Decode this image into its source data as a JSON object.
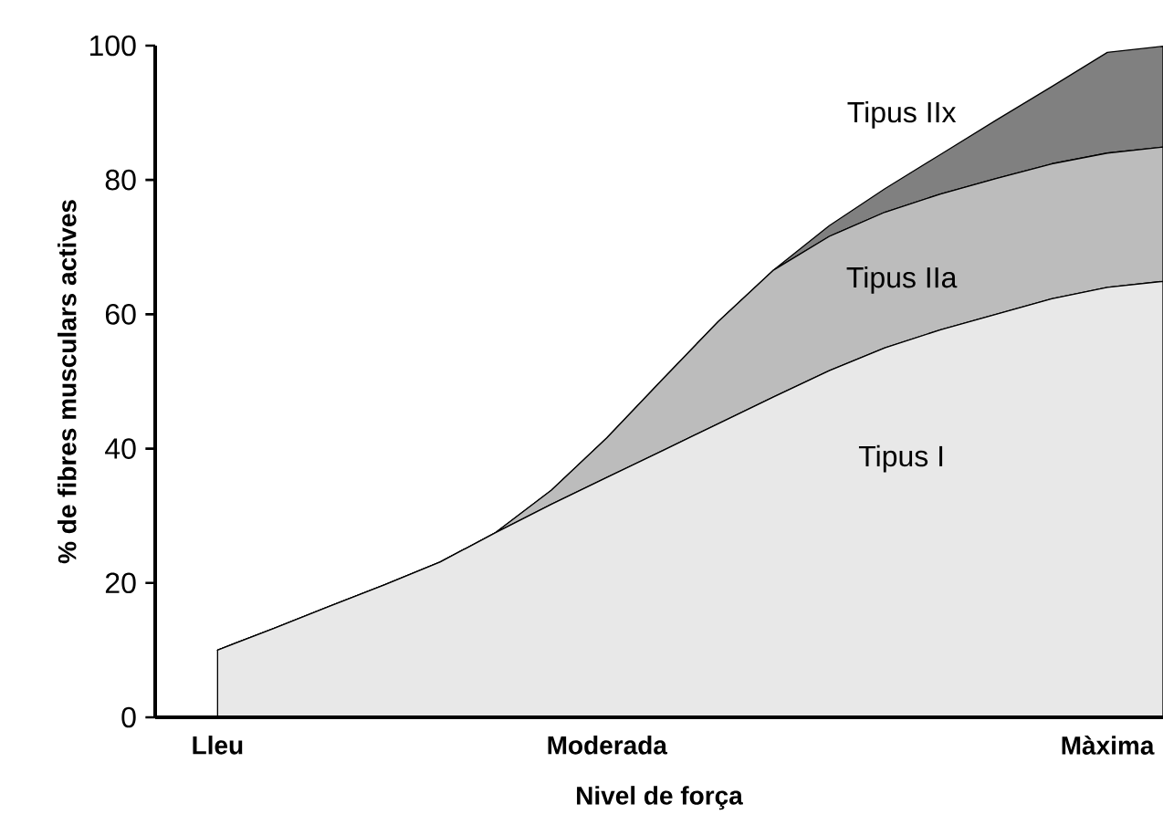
{
  "chart_data": {
    "type": "area",
    "stacked": true,
    "xlabel": "Nivel de força",
    "ylabel": "% de fibres musculars actives",
    "categories": [
      "Lleu",
      null,
      null,
      null,
      null,
      null,
      null,
      "Moderada",
      null,
      null,
      null,
      null,
      null,
      null,
      null,
      null,
      "Màxima",
      null
    ],
    "ylim": [
      0,
      100
    ],
    "yticks": [
      0,
      20,
      40,
      60,
      80,
      100
    ],
    "grid": false,
    "legend": false,
    "series": [
      {
        "name": "Tipus I",
        "color": "#e8e8e8",
        "values": [
          10,
          13.2,
          16.5,
          19.7,
          23.1,
          27.5,
          31.7,
          35.7,
          39.7,
          43.7,
          47.7,
          51.6,
          55.0,
          57.7,
          60.0,
          62.3,
          64,
          64.9
        ]
      },
      {
        "name": "Tipus IIa",
        "color": "#bcbcbc",
        "values": [
          0,
          0,
          0,
          0,
          0,
          0,
          2.1,
          5.9,
          10.6,
          15.2,
          18.9,
          20.0,
          20.2,
          20.2,
          20.2,
          20.1,
          20,
          20
        ]
      },
      {
        "name": "Tipus IIx",
        "color": "#808080",
        "values": [
          0,
          0,
          0,
          0,
          0,
          0,
          0,
          0,
          0,
          0,
          0,
          1.6,
          3.5,
          5.9,
          8.7,
          11.5,
          15,
          15
        ]
      }
    ]
  }
}
